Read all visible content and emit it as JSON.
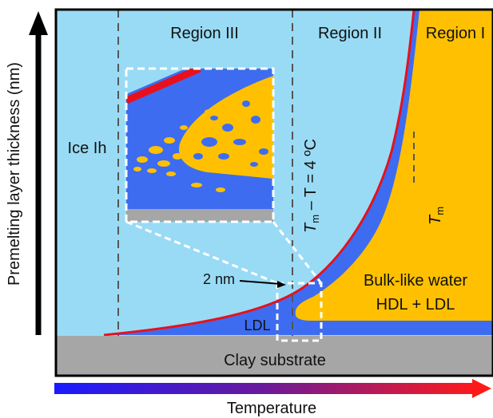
{
  "labels": {
    "region_3": "Region III",
    "region_2": "Region II",
    "region_1": "Region I",
    "ice": "Ice Ih",
    "bulk_line1": "Bulk-like water",
    "bulk_line2": "HDL + LDL",
    "ldl": "LDL",
    "two_nm": "2 nm",
    "substrate": "Clay substrate",
    "x_axis": "Temperature",
    "y_axis": "Premelting layer thickness (nm)",
    "tm": "T",
    "tm_sub": "m",
    "tm_minus_t": "T",
    "tm_minus_t_sub": "m",
    "tm_minus_t_rest": " – T = 4 ºC"
  },
  "colors": {
    "ice": "#99dbf5",
    "ldl": "#3d6cf0",
    "bulk_water": "#fec000",
    "interface": "#e8101c",
    "substrate": "#a6a6a6",
    "frame": "#000000",
    "gradient_start": "#1a1aff",
    "gradient_end": "#ff1a1a"
  }
}
